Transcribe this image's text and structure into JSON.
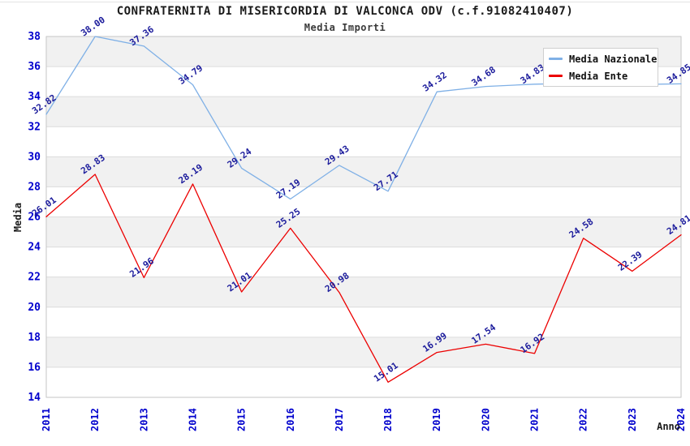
{
  "page": {
    "title": "CONFRATERNITA DI MISERICORDIA DI VALCONCA ODV (c.f.91082410407)",
    "subtitle": "Media Importi"
  },
  "chart_data": {
    "type": "line",
    "title": "CONFRATERNITA DI MISERICORDIA DI VALCONCA ODV (c.f.91082410407)",
    "subtitle": "Media Importi",
    "xlabel": "Anno",
    "ylabel": "Media",
    "categories": [
      "2011",
      "2012",
      "2013",
      "2014",
      "2015",
      "2016",
      "2017",
      "2018",
      "2019",
      "2020",
      "2021",
      "2022",
      "2023",
      "2024"
    ],
    "yticks": [
      14,
      16,
      18,
      20,
      22,
      24,
      26,
      28,
      30,
      32,
      34,
      36,
      38
    ],
    "ylim": [
      14,
      38
    ],
    "grid": "horizontal gridlines with alternating gray bands",
    "legend_position": "top-right",
    "series": [
      {
        "name": "Media Nazionale",
        "color": "#7FB0E6",
        "values": [
          32.82,
          38.0,
          37.36,
          34.79,
          29.24,
          27.19,
          29.43,
          27.71,
          34.32,
          34.68,
          34.83,
          34.9,
          34.8,
          34.85
        ],
        "labels": [
          "32.82",
          "38.00",
          "37.36",
          "34.79",
          "29.24",
          "27.19",
          "29.43",
          "27.71",
          "34.32",
          "34.68",
          "34.83",
          null,
          null,
          "34.85"
        ]
      },
      {
        "name": "Media Ente",
        "color": "#EC0000",
        "values": [
          26.01,
          28.83,
          21.96,
          28.19,
          21.01,
          25.25,
          20.98,
          15.01,
          16.99,
          17.54,
          16.92,
          24.58,
          22.39,
          24.81
        ],
        "labels": [
          "26.01",
          "28.83",
          "21.96",
          "28.19",
          "21.01",
          "25.25",
          "20.98",
          "15.01",
          "16.99",
          "17.54",
          "16.92",
          "24.58",
          "22.39",
          "24.81"
        ]
      }
    ],
    "colors": {
      "band": "#F1F1F1",
      "gridline": "#DCDCDC",
      "plot_border": "#C6C6C6",
      "tick_label": "#0000CD",
      "data_label": "#1C1C9C",
      "axis_title": "#1A1A1A"
    }
  }
}
